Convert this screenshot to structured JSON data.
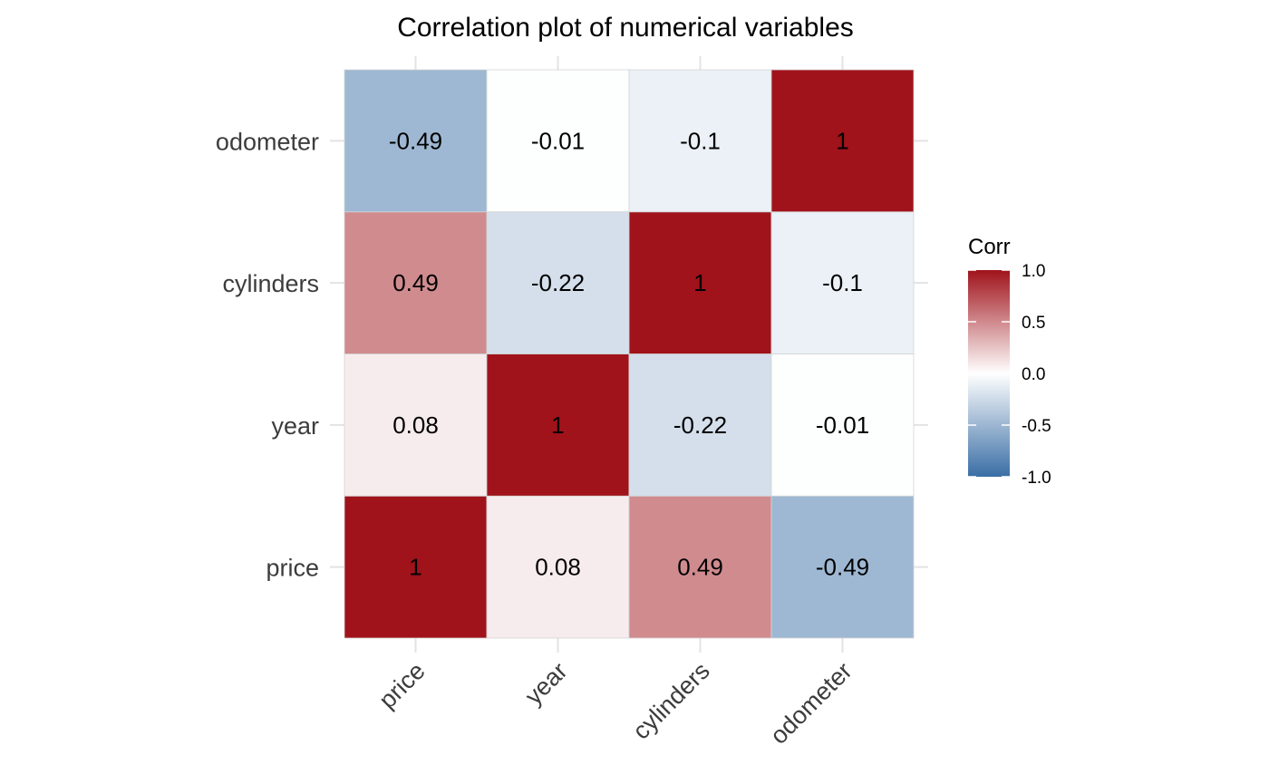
{
  "chart_data": {
    "type": "heatmap",
    "title": "Correlation plot of numerical variables",
    "x_categories": [
      "price",
      "year",
      "cylinders",
      "odometer"
    ],
    "y_categories": [
      "price",
      "year",
      "cylinders",
      "odometer"
    ],
    "values": [
      [
        1,
        0.08,
        0.49,
        -0.49
      ],
      [
        0.08,
        1,
        -0.22,
        -0.01
      ],
      [
        0.49,
        -0.22,
        1,
        -0.1
      ],
      [
        -0.49,
        -0.01,
        -0.1,
        1
      ]
    ],
    "labels": [
      [
        "1",
        "0.08",
        "0.49",
        "-0.49"
      ],
      [
        "0.08",
        "1",
        "-0.22",
        "-0.01"
      ],
      [
        "0.49",
        "-0.22",
        "1",
        "-0.1"
      ],
      [
        "-0.49",
        "-0.01",
        "-0.1",
        "1"
      ]
    ],
    "legend": {
      "title": "Corr",
      "range": [
        -1,
        1
      ],
      "ticks": [
        "1.0",
        "0.5",
        "0.0",
        "-0.5",
        "-1.0"
      ],
      "tick_values": [
        1.0,
        0.5,
        0.0,
        -0.5,
        -1.0
      ],
      "colors": {
        "low": "#3a6ea5",
        "mid": "#ffffff",
        "high": "#a0131b"
      },
      "placement": "right"
    },
    "grid": true
  }
}
